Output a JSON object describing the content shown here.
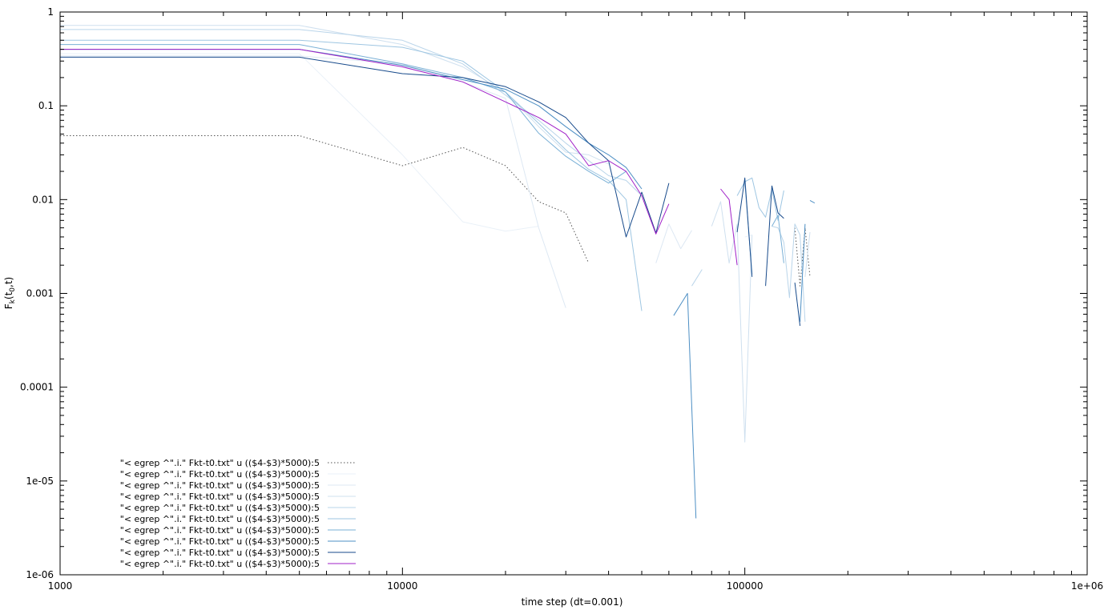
{
  "chart_data": {
    "type": "line",
    "title": "",
    "xlabel": "time step (dt=0.001)",
    "ylabel_main": "F",
    "ylabel_sub": "k",
    "ylabel_mid": "(t",
    "ylabel_sub2": "0",
    "ylabel_end": ",t)",
    "xscale": "log",
    "yscale": "log",
    "xlim": [
      1000,
      1000000
    ],
    "ylim": [
      1e-06,
      1
    ],
    "grid": false,
    "legend_position": "bottom-left",
    "x_tick_labels": [
      "1000",
      "10000",
      "100000",
      "1e+06"
    ],
    "y_tick_labels": [
      "1e-06",
      "1e-05",
      "0.0001",
      "0.001",
      "0.01",
      "0.1",
      "1"
    ],
    "series": [
      {
        "name": "\"< egrep ^\".i.\" Fkt-t0.txt\" u (($4-$3)*5000):5",
        "color": "#555555",
        "dash": "dotted",
        "points": [
          [
            1000,
            0.048
          ],
          [
            5000,
            0.048
          ],
          [
            10000,
            0.023
          ],
          [
            15000,
            0.036
          ],
          [
            20000,
            0.023
          ],
          [
            25000,
            0.0095
          ],
          [
            30000,
            0.0072
          ],
          [
            35000,
            0.0021
          ],
          [
            null,
            null
          ],
          [
            140000,
            0.005
          ],
          [
            145000,
            0.0012
          ],
          [
            150000,
            0.005
          ],
          [
            155000,
            0.0015
          ]
        ]
      },
      {
        "name": "\"< egrep ^\".i.\" Fkt-t0.txt\" u (($4-$3)*5000):5",
        "color": "#eaf1f8",
        "dash": "solid",
        "points": [
          [
            1000,
            0.36
          ],
          [
            5000,
            0.36
          ],
          [
            10000,
            0.03
          ],
          [
            15000,
            0.0058
          ],
          [
            20000,
            0.0046
          ],
          [
            25000,
            0.0052
          ],
          [
            null,
            null
          ],
          [
            100000,
            0.004
          ],
          [
            105000,
            0.0042
          ]
        ]
      },
      {
        "name": "\"< egrep ^\".i.\" Fkt-t0.txt\" u (($4-$3)*5000):5",
        "color": "#dde8f3",
        "dash": "solid",
        "points": [
          [
            1000,
            0.34
          ],
          [
            5000,
            0.34
          ],
          [
            10000,
            0.28
          ],
          [
            15000,
            0.18
          ],
          [
            20000,
            0.12
          ],
          [
            25000,
            0.005
          ],
          [
            30000,
            0.0007
          ],
          [
            null,
            null
          ],
          [
            55000,
            0.0021
          ],
          [
            60000,
            0.0055
          ],
          [
            65000,
            0.003
          ],
          [
            70000,
            0.0047
          ]
        ]
      },
      {
        "name": "\"< egrep ^\".i.\" Fkt-t0.txt\" u (($4-$3)*5000):5",
        "color": "#cfe0ef",
        "dash": "solid",
        "points": [
          [
            1000,
            0.72
          ],
          [
            5000,
            0.72
          ],
          [
            10000,
            0.45
          ],
          [
            15000,
            0.26
          ],
          [
            20000,
            0.14
          ],
          [
            25000,
            0.06
          ],
          [
            30000,
            0.032
          ],
          [
            35000,
            0.03
          ],
          [
            40000,
            0.024
          ],
          [
            null,
            null
          ],
          [
            80000,
            0.0052
          ],
          [
            85000,
            0.0095
          ],
          [
            90000,
            0.0021
          ],
          [
            95000,
            0.0055
          ],
          [
            100000,
            2.6e-05
          ],
          [
            105000,
            0.0042
          ],
          [
            null,
            null
          ],
          [
            150000,
            0.0015
          ],
          [
            155000,
            0.0045
          ]
        ]
      },
      {
        "name": "\"< egrep ^\".i.\" Fkt-t0.txt\" u (($4-$3)*5000):5",
        "color": "#bad5ea",
        "dash": "solid",
        "points": [
          [
            1000,
            0.65
          ],
          [
            5000,
            0.65
          ],
          [
            10000,
            0.5
          ],
          [
            15000,
            0.28
          ],
          [
            20000,
            0.13
          ],
          [
            25000,
            0.07
          ],
          [
            30000,
            0.04
          ],
          [
            35000,
            0.026
          ],
          [
            40000,
            0.018
          ],
          [
            45000,
            0.016
          ],
          [
            50000,
            0.011
          ],
          [
            null,
            null
          ],
          [
            70000,
            0.0012
          ],
          [
            75000,
            0.0018
          ],
          [
            null,
            null
          ],
          [
            120000,
            0.0052
          ],
          [
            125000,
            0.005
          ],
          [
            130000,
            0.0035
          ],
          [
            135000,
            0.0009
          ],
          [
            140000,
            0.0055
          ],
          [
            145000,
            0.0042
          ],
          [
            150000,
            0.0005
          ]
        ]
      },
      {
        "name": "\"< egrep ^\".i.\" Fkt-t0.txt\" u (($4-$3)*5000):5",
        "color": "#9ec6e2",
        "dash": "solid",
        "points": [
          [
            1000,
            0.5
          ],
          [
            5000,
            0.5
          ],
          [
            10000,
            0.42
          ],
          [
            15000,
            0.3
          ],
          [
            20000,
            0.14
          ],
          [
            25000,
            0.065
          ],
          [
            30000,
            0.034
          ],
          [
            35000,
            0.021
          ],
          [
            40000,
            0.016
          ],
          [
            45000,
            0.01
          ],
          [
            50000,
            0.00065
          ],
          [
            null,
            null
          ],
          [
            95000,
            0.011
          ],
          [
            100000,
            0.0155
          ],
          [
            105000,
            0.017
          ],
          [
            110000,
            0.0082
          ],
          [
            115000,
            0.0065
          ],
          [
            120000,
            0.013
          ],
          [
            125000,
            0.006
          ],
          [
            130000,
            0.0125
          ]
        ]
      },
      {
        "name": "\"< egrep ^\".i.\" Fkt-t0.txt\" u (($4-$3)*5000):5",
        "color": "#7ab0d6",
        "dash": "solid",
        "points": [
          [
            1000,
            0.45
          ],
          [
            5000,
            0.45
          ],
          [
            10000,
            0.28
          ],
          [
            15000,
            0.2
          ],
          [
            20000,
            0.14
          ],
          [
            25000,
            0.051
          ],
          [
            30000,
            0.029
          ],
          [
            35000,
            0.02
          ],
          [
            40000,
            0.015
          ],
          [
            45000,
            0.02
          ],
          [
            null,
            null
          ],
          [
            100000,
            0.0155
          ],
          [
            105000,
            0.0016
          ],
          [
            null,
            null
          ],
          [
            120000,
            0.0052
          ],
          [
            125000,
            0.0068
          ],
          [
            130000,
            0.0021
          ]
        ]
      },
      {
        "name": "\"< egrep ^\".i.\" Fkt-t0.txt\" u (($4-$3)*5000):5",
        "color": "#4d8fc4",
        "dash": "solid",
        "points": [
          [
            1000,
            0.4
          ],
          [
            5000,
            0.4
          ],
          [
            10000,
            0.27
          ],
          [
            15000,
            0.19
          ],
          [
            20000,
            0.15
          ],
          [
            25000,
            0.1
          ],
          [
            30000,
            0.06
          ],
          [
            35000,
            0.04
          ],
          [
            40000,
            0.03
          ],
          [
            45000,
            0.022
          ],
          [
            50000,
            0.013
          ],
          [
            null,
            null
          ],
          [
            62000,
            0.00058
          ],
          [
            68000,
            0.001
          ],
          [
            72000,
            4e-06
          ],
          [
            null,
            null
          ],
          [
            145000,
            0.0005
          ],
          [
            150000,
            0.0055
          ],
          [
            null,
            null
          ],
          [
            155000,
            0.0098
          ],
          [
            160000,
            0.0092
          ]
        ]
      },
      {
        "name": "\"< egrep ^\".i.\" Fkt-t0.txt\" u (($4-$3)*5000):5",
        "color": "#174a8b",
        "dash": "solid",
        "points": [
          [
            1000,
            0.33
          ],
          [
            5000,
            0.33
          ],
          [
            10000,
            0.22
          ],
          [
            15000,
            0.2
          ],
          [
            20000,
            0.16
          ],
          [
            25000,
            0.11
          ],
          [
            30000,
            0.075
          ],
          [
            35000,
            0.04
          ],
          [
            40000,
            0.026
          ],
          [
            45000,
            0.004
          ],
          [
            50000,
            0.012
          ],
          [
            55000,
            0.0044
          ],
          [
            60000,
            0.015
          ],
          [
            null,
            null
          ],
          [
            95000,
            0.0045
          ],
          [
            100000,
            0.017
          ],
          [
            105000,
            0.0015
          ],
          [
            null,
            null
          ],
          [
            115000,
            0.0012
          ],
          [
            120000,
            0.014
          ],
          [
            125000,
            0.0072
          ],
          [
            130000,
            0.0063
          ],
          [
            null,
            null
          ],
          [
            140000,
            0.0013
          ],
          [
            145000,
            0.00045
          ]
        ]
      },
      {
        "name": "\"< egrep ^\".i.\" Fkt-t0.txt\" u (($4-$3)*5000):5",
        "color": "#a020c8",
        "dash": "solid",
        "points": [
          [
            1000,
            0.4
          ],
          [
            5000,
            0.4
          ],
          [
            10000,
            0.26
          ],
          [
            15000,
            0.18
          ],
          [
            20000,
            0.11
          ],
          [
            25000,
            0.075
          ],
          [
            30000,
            0.05
          ],
          [
            35000,
            0.023
          ],
          [
            40000,
            0.026
          ],
          [
            45000,
            0.02
          ],
          [
            50000,
            0.011
          ],
          [
            55000,
            0.0043
          ],
          [
            60000,
            0.009
          ],
          [
            null,
            null
          ],
          [
            85000,
            0.013
          ],
          [
            90000,
            0.01
          ],
          [
            95000,
            0.002
          ]
        ]
      }
    ]
  }
}
